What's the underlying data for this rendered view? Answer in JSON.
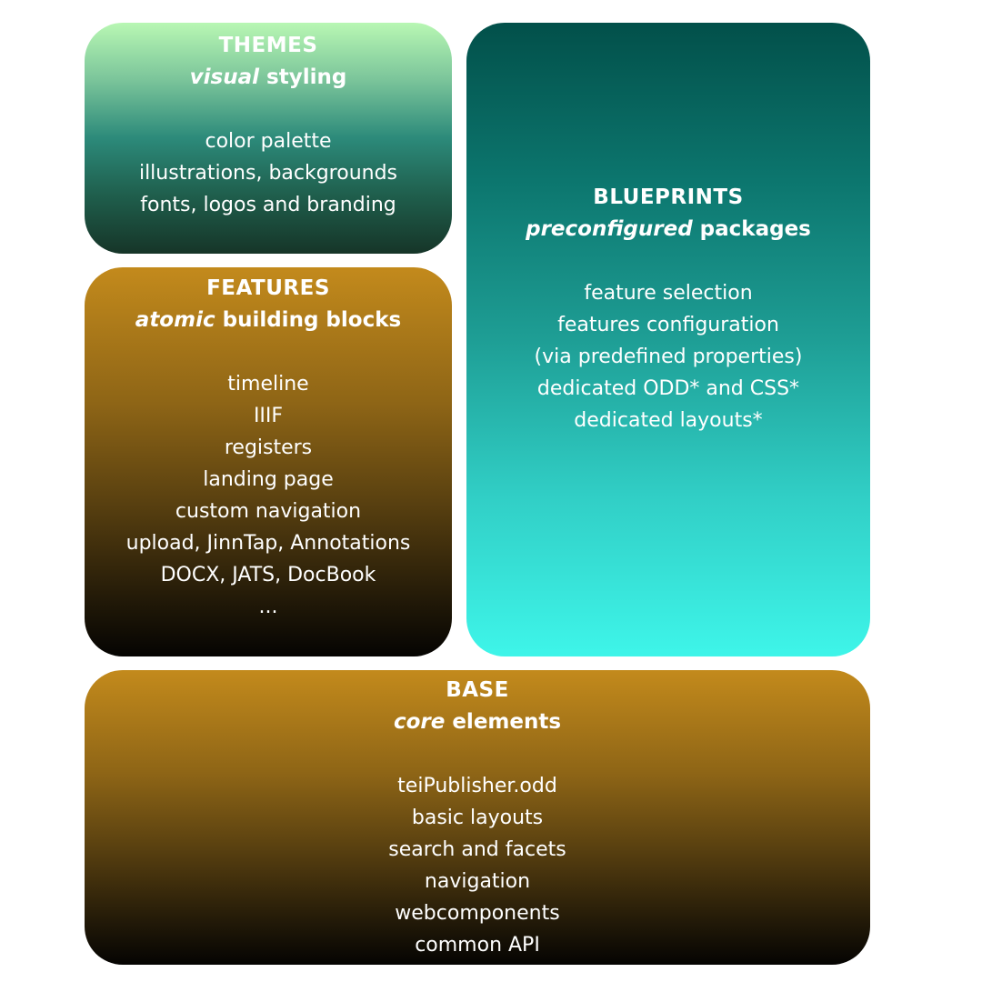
{
  "themes": {
    "title": "THEMES",
    "subtitle_emphasis": "visual",
    "subtitle_rest": " styling",
    "items": [
      "color palette",
      "illustrations, backgrounds",
      "fonts, logos and branding"
    ]
  },
  "features": {
    "title": "FEATURES",
    "subtitle_emphasis": "atomic",
    "subtitle_rest": " building blocks",
    "items": [
      "timeline",
      "IIIF",
      "registers",
      "landing page",
      "custom navigation",
      "upload, JinnTap, Annotations",
      "DOCX, JATS, DocBook",
      "..."
    ]
  },
  "blueprints": {
    "title": "BLUEPRINTS",
    "subtitle_emphasis": "preconfigured",
    "subtitle_rest": " packages",
    "items": [
      "feature selection",
      "features configuration",
      "(via predefined properties)",
      "dedicated ODD* and CSS*",
      "dedicated layouts*"
    ]
  },
  "base": {
    "title": "BASE",
    "subtitle_emphasis": "core",
    "subtitle_rest": " elements",
    "items": [
      "teiPublisher.odd",
      "basic layouts",
      "search and facets",
      "navigation",
      "webcomponents",
      "common API"
    ]
  },
  "colors": {
    "themes_gradient": [
      "#b8f7b3",
      "#163528"
    ],
    "features_gradient": [
      "#c38a1c",
      "#050402"
    ],
    "blueprints_gradient": [
      "#02504a",
      "#3ef5e9"
    ],
    "base_gradient": [
      "#c38a1c",
      "#050402"
    ],
    "text": "#ffffff"
  }
}
